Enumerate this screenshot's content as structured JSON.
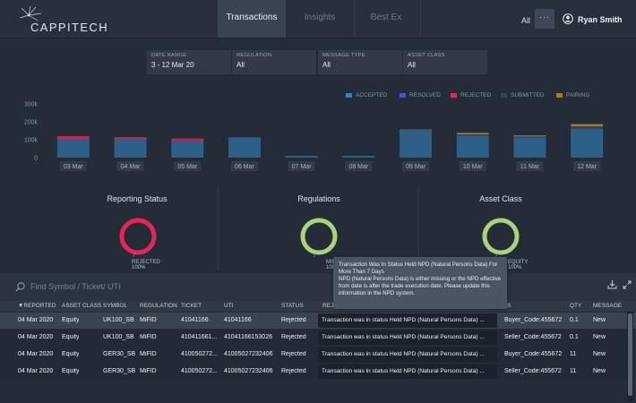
{
  "header": {
    "logo_text": "CAPPITECH",
    "tabs": [
      {
        "label": "Transactions"
      },
      {
        "label": "Insights"
      },
      {
        "label": "Best Ex"
      }
    ],
    "all_label": "All",
    "more_label": "···",
    "user_name": "Ryan Smith"
  },
  "filters": [
    {
      "label": "DATE RANGE",
      "value": "3 - 12 Mar 20"
    },
    {
      "label": "REGULATION",
      "value": "All"
    },
    {
      "label": "MESSAGE TYPE",
      "value": "All"
    },
    {
      "label": "ASSET CLASS",
      "value": "All"
    }
  ],
  "legend": [
    {
      "label": "ACCEPTED",
      "color": "#3e7fb8"
    },
    {
      "label": "RESOLVED",
      "color": "#4a55b8"
    },
    {
      "label": "REJECTED",
      "color": "#e8245a"
    },
    {
      "label": "SUBMITTED",
      "color": "#3b4552"
    },
    {
      "label": "PAIRING",
      "color": "#a37a3a"
    }
  ],
  "chart_data": {
    "type": "bar",
    "stacked": true,
    "categories": [
      "03 Mar",
      "04 Mar",
      "05 Mar",
      "06 Mar",
      "07 Mar",
      "08 Mar",
      "09 Mar",
      "10 Mar",
      "11 Mar",
      "12 Mar"
    ],
    "yticks": [
      "0",
      "100k",
      "200k",
      "300k"
    ],
    "ylim": [
      0,
      300000
    ],
    "series": [
      {
        "name": "ACCEPTED",
        "color": "#2e5f89",
        "values": [
          105000,
          100000,
          95000,
          110000,
          10000,
          10000,
          155000,
          120000,
          110000,
          160000
        ]
      },
      {
        "name": "REJECTED",
        "color": "#c0244f",
        "values": [
          15000,
          15000,
          12000,
          0,
          0,
          0,
          0,
          0,
          0,
          0
        ]
      },
      {
        "name": "SUBMITTED",
        "color": "#3b4552",
        "values": [
          0,
          0,
          0,
          5000,
          0,
          0,
          5000,
          10000,
          8000,
          15000
        ]
      },
      {
        "name": "PAIRING",
        "color": "#a37a3a",
        "values": [
          0,
          0,
          0,
          0,
          0,
          0,
          0,
          8000,
          6000,
          12000
        ]
      }
    ],
    "grid": false
  },
  "panels": [
    {
      "title": "Reporting Status",
      "donut_color": "#e8245a",
      "label_line1": "REJECTED",
      "label_line2": "100%"
    },
    {
      "title": "Regulations",
      "donut_color": "#a8d37a",
      "label_line1": "MIFI",
      "label_line2": "100"
    },
    {
      "title": "Asset Class",
      "donut_color": "#a8d37a",
      "label_line1": "EQUITY",
      "label_line2": "100%"
    }
  ],
  "search": {
    "placeholder": "Find Symbol / Ticket/ UTI"
  },
  "table": {
    "headers": [
      "▼REPORTED",
      "ASSET CLASS",
      "SYMBOL",
      "REGULATION",
      "TICKET",
      "UTI",
      "STATUS",
      "REJEC",
      "S",
      "QTY",
      "MESSAGE"
    ],
    "rows": [
      {
        "reported": "04 Mar 2020",
        "asset_class": "Equity",
        "symbol": "UK100_SB",
        "regulation": "MiFID",
        "ticket": "41041166",
        "uti": "41041166",
        "status": "Rejected",
        "message": "Transaction was in status Held NPD (Natural Persons Data) ...",
        "code": "Buyer_Code:455672",
        "qty": "0.1",
        "msg_type": "New"
      },
      {
        "reported": "04 Mar 2020",
        "asset_class": "Equity",
        "symbol": "UK100_SB",
        "regulation": "MiFID",
        "ticket": "410411661...",
        "uti": "41041166153026",
        "status": "Rejected",
        "message": "Transaction was in status Held NPD (Natural Persons Data) ...",
        "code": "Seller_Code:455672",
        "qty": "0.1",
        "msg_type": "New"
      },
      {
        "reported": "04 Mar 2020",
        "asset_class": "Equity",
        "symbol": "GER30_SB",
        "regulation": "MiFID",
        "ticket": "410050272...",
        "uti": "41005027232406",
        "status": "Rejected",
        "message": "Transaction was in status Held NPD (Natural Persons Data) ...",
        "code": "Buyer_Code:455672",
        "qty": "11",
        "msg_type": "New"
      },
      {
        "reported": "04 Mar 2020",
        "asset_class": "Equity",
        "symbol": "GER30_SB",
        "regulation": "MiFID",
        "ticket": "410050272...",
        "uti": "41005027232406",
        "status": "Rejected",
        "message": "Transaction was in status Held NPD (Natural Persons Data) ...",
        "code": "Seller_Code:455672",
        "qty": "11",
        "msg_type": "New"
      }
    ]
  },
  "tooltip": {
    "title": "Transaction Was In Status Held NPD (Natural Persons Data) For More Than 7 Days",
    "body": "NPD (Natural Persons Data) is either missing or the NPD effective from date is after the trade execution date. Please update this information in the NPD system."
  }
}
